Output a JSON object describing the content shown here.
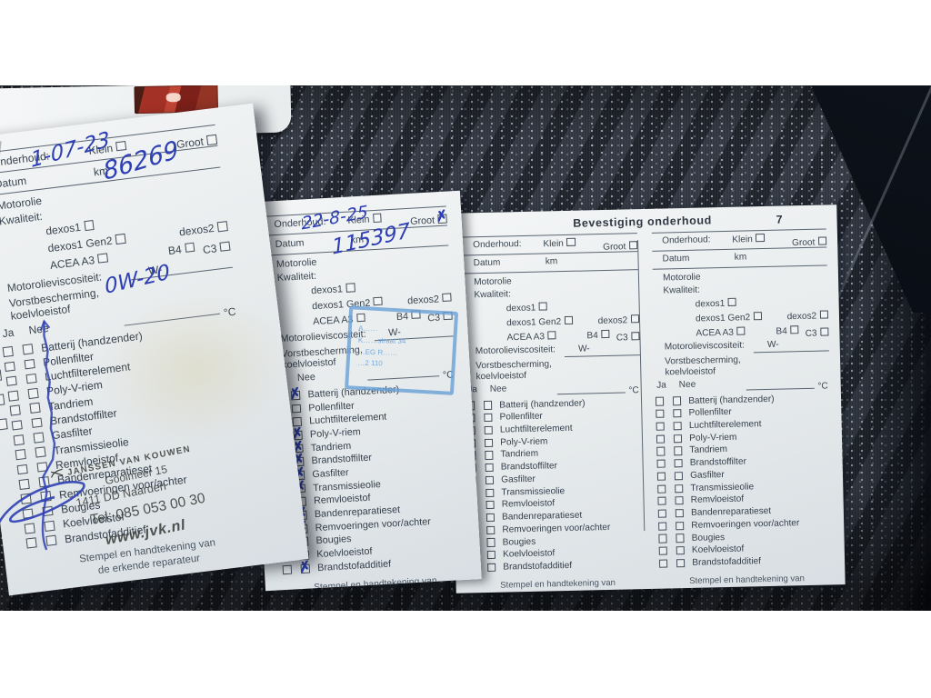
{
  "photo": {
    "scene": "Maintenance booklet lying open on a dark patterned car seat",
    "colors": {
      "pen_blue": "#2e40b4",
      "stamp_blue": "#68a0d6",
      "paper": "#e9edf0",
      "seat_fabric": "#2b313b",
      "red_label": "#a33125"
    }
  },
  "booklet": {
    "labels": {
      "onderhoud": "Onderhoud:",
      "klein": "Klein",
      "groot": "Groot",
      "datum": "Datum",
      "km": "km",
      "motorolie": "Motorolie",
      "kwaliteit": "Kwaliteit:",
      "dexos1": "dexos1",
      "dexos1_gen2": "dexos1 Gen2",
      "acea_a3": "ACEA A3",
      "dexos2": "dexos2",
      "b4": "B4",
      "c3": "C3",
      "viscositeit": "Motorolieviscositeit:",
      "w_prefix": "W-",
      "vorst1": "Vorstbescherming,",
      "vorst2": "koelvloeistof",
      "ja": "Ja",
      "nee": "Nee",
      "celsius": "°C",
      "note1": "Stempel en handtekening van",
      "note2": "de erkende reparateur"
    },
    "checklist": [
      "Batterij (handzender)",
      "Pollenfilter",
      "Luchtfilterelement",
      "Poly-V-riem",
      "Tandriem",
      "Brandstoffilter",
      "Gasfilter",
      "Transmissieolie",
      "Remvloeistof",
      "Bandenreparatieset",
      "Remvoeringen voor/achter",
      "Bougies",
      "Koelvloeistof",
      "Brandstofadditief"
    ],
    "right_page": {
      "title": "Bevestiging onderhoud",
      "page_number": "7"
    },
    "columns": [
      {
        "name": "service-entry-left",
        "handwriting": {
          "datum": "1-07-23",
          "km": "86269",
          "viscosity": "0W-20"
        },
        "groot_checked": false,
        "pen_stroke_through_checklist": true,
        "checks": [
          "",
          "",
          "",
          "",
          "",
          "",
          "",
          "",
          "",
          "",
          "",
          "",
          "",
          ""
        ],
        "garage_stamp": {
          "lines": [
            "Janssen van Kouwen",
            "Gooimeer 15",
            "1411 DD Naarden",
            "Tel: 085 053 00 30",
            "www.jvk.nl"
          ]
        }
      },
      {
        "name": "service-entry-middle",
        "handwriting": {
          "datum": "22-8-25",
          "km": "115397"
        },
        "groot_checked": true,
        "checks": [
          "nee",
          "ja",
          "ja",
          "nee",
          "nee",
          "nee",
          "nee",
          "nee",
          "ja",
          "nee",
          "nee",
          "ja",
          "nee",
          "nee"
        ],
        "blue_stamp_lines": [
          "A……",
          "K……straat 34",
          "…EG R……",
          "…2 110"
        ]
      },
      {
        "name": "blank-confirmation-1",
        "groot_checked": false,
        "checks": [
          "",
          "",
          "",
          "",
          "",
          "",
          "",
          "",
          "",
          "",
          "",
          "",
          "",
          ""
        ]
      },
      {
        "name": "blank-confirmation-2",
        "groot_checked": false,
        "checks": [
          "",
          "",
          "",
          "",
          "",
          "",
          "",
          "",
          "",
          "",
          "",
          "",
          "",
          ""
        ]
      }
    ]
  }
}
